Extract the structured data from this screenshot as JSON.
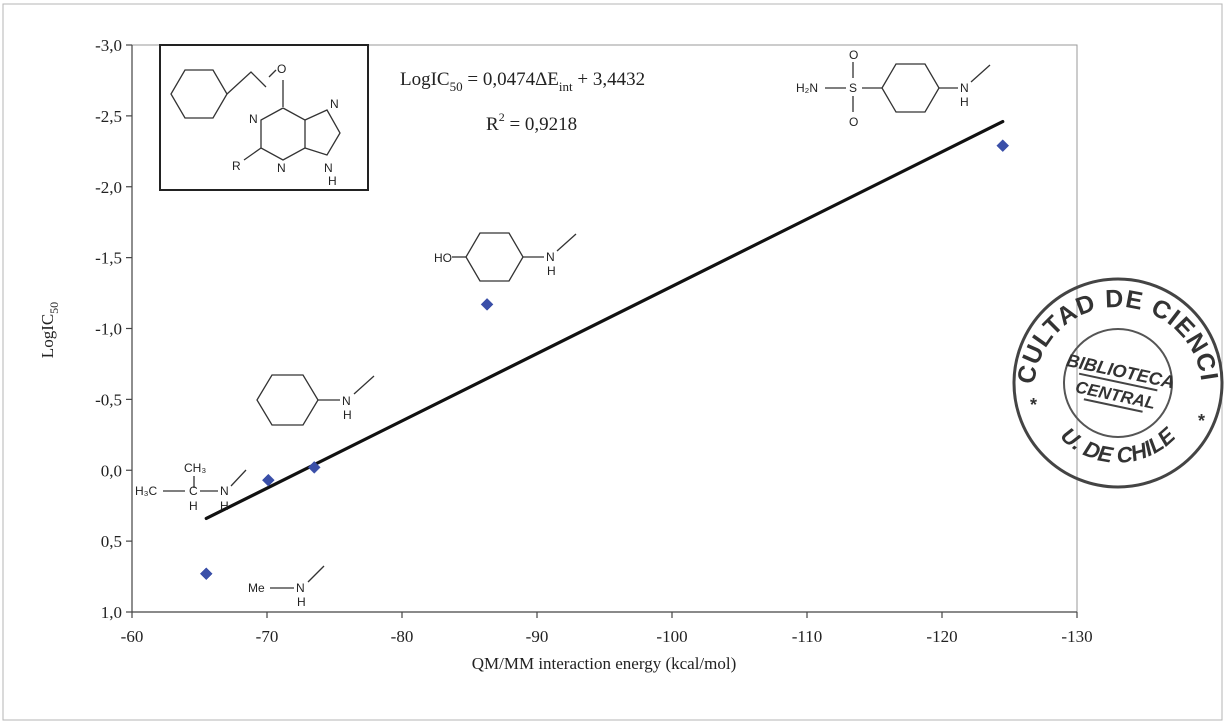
{
  "chart_data": {
    "type": "scatter",
    "xlabel": "QM/MM interaction energy (kcal/mol)",
    "ylabel_base": "LogIC",
    "ylabel_sub": "50",
    "x_ticks": [
      "-60",
      "-70",
      "-80",
      "-90",
      "-100",
      "-110",
      "-120",
      "-130"
    ],
    "x_tick_values": [
      -60,
      -70,
      -80,
      -90,
      -100,
      -110,
      -120,
      -130
    ],
    "y_ticks": [
      "-3,0",
      "-2,5",
      "-2,0",
      "-1,5",
      "-1,0",
      "-0,5",
      "0,0",
      "0,5",
      "1,0"
    ],
    "y_tick_values": [
      -3.0,
      -2.5,
      -2.0,
      -1.5,
      -1.0,
      -0.5,
      0.0,
      0.5,
      1.0
    ],
    "xlim": [
      -60,
      -130
    ],
    "ylim": [
      -3.0,
      1.0
    ],
    "x_axis_reversed": true,
    "y_axis_reversed": true,
    "grid": false,
    "series": [
      {
        "marker": "diamond",
        "color": "#3a4fa8",
        "x": [
          -65.5,
          -70.1,
          -73.5,
          -86.3,
          -124.5
        ],
        "y": [
          0.73,
          0.07,
          -0.02,
          -1.17,
          -2.29
        ]
      }
    ],
    "trendline": {
      "color": "#111111",
      "x": [
        -65.5,
        -124.5
      ],
      "y": [
        0.34,
        -2.46
      ]
    },
    "equation": {
      "line1_prefix": "LogIC",
      "line1_sub": "50",
      "line1_mid": " = 0,0474ΔE",
      "line1_sub2": "int",
      "line1_suffix": " + 3,4432",
      "line2_prefix": "R",
      "line2_sup": "2",
      "line2_suffix": " = 0,9218"
    }
  },
  "structures": {
    "purine": {
      "atoms": [
        "O",
        "N",
        "N",
        "N",
        "N",
        "H",
        "R"
      ]
    },
    "sulfonamide": {
      "groups": [
        "H₂N",
        "S",
        "O",
        "O",
        "N",
        "H"
      ]
    },
    "hydroxyaniline": {
      "groups": [
        "HO",
        "N",
        "H"
      ]
    },
    "aniline": {
      "groups": [
        "N",
        "H"
      ]
    },
    "isopropylamine": {
      "groups": [
        "CH₃",
        "H₃C",
        "C",
        "N",
        "H",
        "H"
      ]
    },
    "methylamine": {
      "groups": [
        "Me",
        "N",
        "H"
      ]
    }
  },
  "stamp": {
    "top_text": "FACULTAD DE CIENCIAS",
    "bottom_text": "U. DE CHILE",
    "center_line1": "BIBLIOTECA",
    "center_line2": "CENTRAL",
    "star": "*"
  }
}
